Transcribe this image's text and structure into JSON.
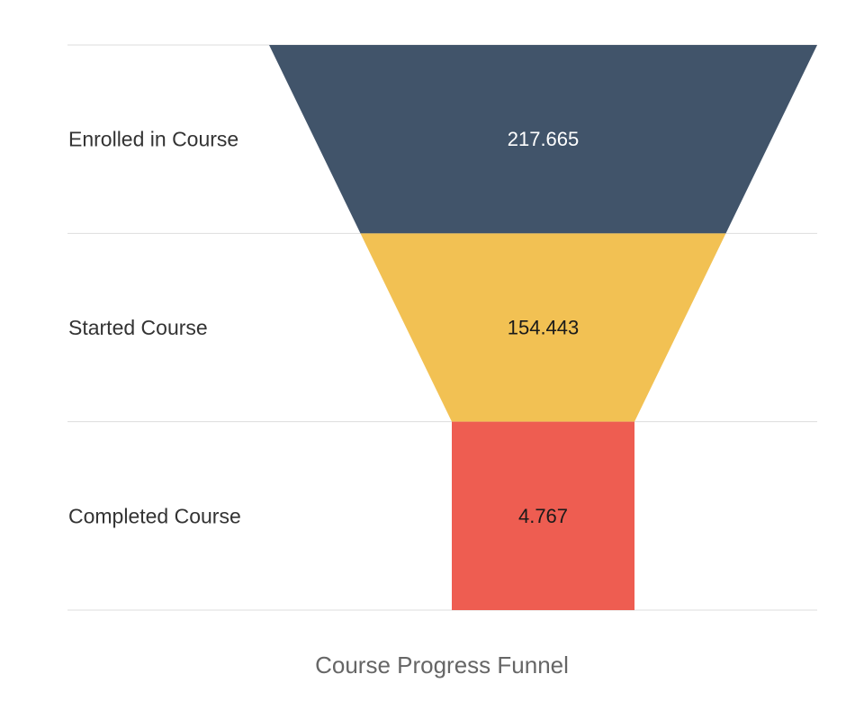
{
  "chart_data": {
    "type": "funnel",
    "title": "Course Progress Funnel",
    "stages": [
      {
        "label": "Enrolled in Course",
        "value": 217.665,
        "value_text": "217.665",
        "color": "#41546a",
        "text_color": "#ffffff"
      },
      {
        "label": "Started Course",
        "value": 154.443,
        "value_text": "154.443",
        "color": "#f2c153",
        "text_color": "#1a1a1a"
      },
      {
        "label": "Completed Course",
        "value": 4.767,
        "value_text": "4.767",
        "color": "#ee5d51",
        "text_color": "#1a1a1a"
      }
    ],
    "grid": true
  }
}
